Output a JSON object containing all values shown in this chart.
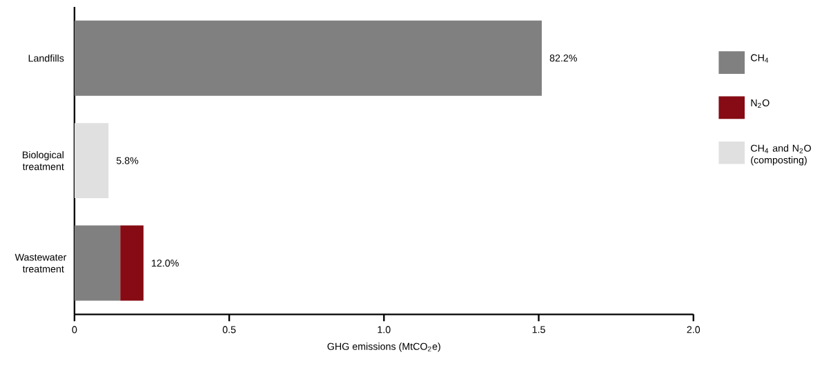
{
  "chart_data": {
    "type": "bar",
    "orientation": "horizontal",
    "stacked": true,
    "xlabel": "GHG emissions (MtCO$_{2}$e)",
    "categories": [
      "Landfills",
      "Biological treatment",
      "Wastewater treatment"
    ],
    "series": [
      {
        "name": "CH$_{4}$",
        "color": "#808080",
        "values": [
          1.51,
          null,
          0.148
        ]
      },
      {
        "name": "N$_{2}$O",
        "color": "#860b14",
        "values": [
          null,
          null,
          0.075
        ]
      },
      {
        "name": "CH$_{4}$ and N$_{2}$O (composting)",
        "color": "#e0e0e0",
        "values": [
          null,
          0.11,
          null
        ]
      }
    ],
    "annotations": [
      {
        "text": "82.2%",
        "x": 1.51,
        "y": "Landfills"
      },
      {
        "text": "5.8%",
        "x": 0.11,
        "y": "Biological treatment"
      },
      {
        "text": "12.0%",
        "x": 0.223,
        "y": "Wastewater treatment"
      }
    ],
    "xlim": [
      0,
      2
    ],
    "xticks": [
      0,
      0.5,
      {
        "value": 1,
        "label": "1.0"
      },
      1.5,
      {
        "value": 2,
        "label": "2.0"
      }
    ],
    "grid": false,
    "legend": "right"
  }
}
